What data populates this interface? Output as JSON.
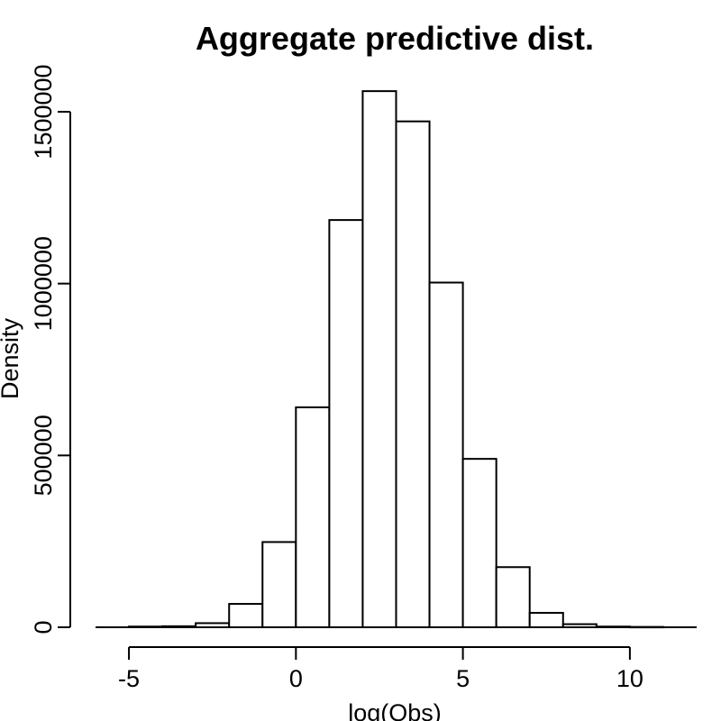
{
  "chart_data": {
    "type": "bar",
    "subtype": "histogram",
    "title": "Aggregate predictive dist.",
    "xlabel": "log(Obs)",
    "ylabel": "Density",
    "xlim": [
      -6,
      12
    ],
    "ylim": [
      0,
      1500000
    ],
    "x_ticks": [
      -5,
      0,
      5,
      10
    ],
    "x_tick_labels": [
      "-5",
      "0",
      "5",
      "10"
    ],
    "y_ticks": [
      0,
      500000,
      1000000,
      1500000
    ],
    "y_tick_labels": [
      "0",
      "500000",
      "1000000",
      "1500000"
    ],
    "bins": [
      {
        "x0": -5,
        "x1": -4,
        "value": 2000
      },
      {
        "x0": -4,
        "x1": -3,
        "value": 3000
      },
      {
        "x0": -3,
        "x1": -2,
        "value": 12000
      },
      {
        "x0": -2,
        "x1": -1,
        "value": 68000
      },
      {
        "x0": -1,
        "x1": 0,
        "value": 248000
      },
      {
        "x0": 0,
        "x1": 1,
        "value": 640000
      },
      {
        "x0": 1,
        "x1": 2,
        "value": 1185000
      },
      {
        "x0": 2,
        "x1": 3,
        "value": 1560000
      },
      {
        "x0": 3,
        "x1": 4,
        "value": 1472000
      },
      {
        "x0": 4,
        "x1": 5,
        "value": 1003000
      },
      {
        "x0": 5,
        "x1": 6,
        "value": 490000
      },
      {
        "x0": 6,
        "x1": 7,
        "value": 175000
      },
      {
        "x0": 7,
        "x1": 8,
        "value": 42000
      },
      {
        "x0": 8,
        "x1": 9,
        "value": 9000
      },
      {
        "x0": 9,
        "x1": 10,
        "value": 2000
      },
      {
        "x0": 10,
        "x1": 11,
        "value": 1000
      }
    ],
    "grid": false,
    "legend": "none",
    "bar_fill": "#ffffff",
    "bar_stroke": "#000000"
  }
}
